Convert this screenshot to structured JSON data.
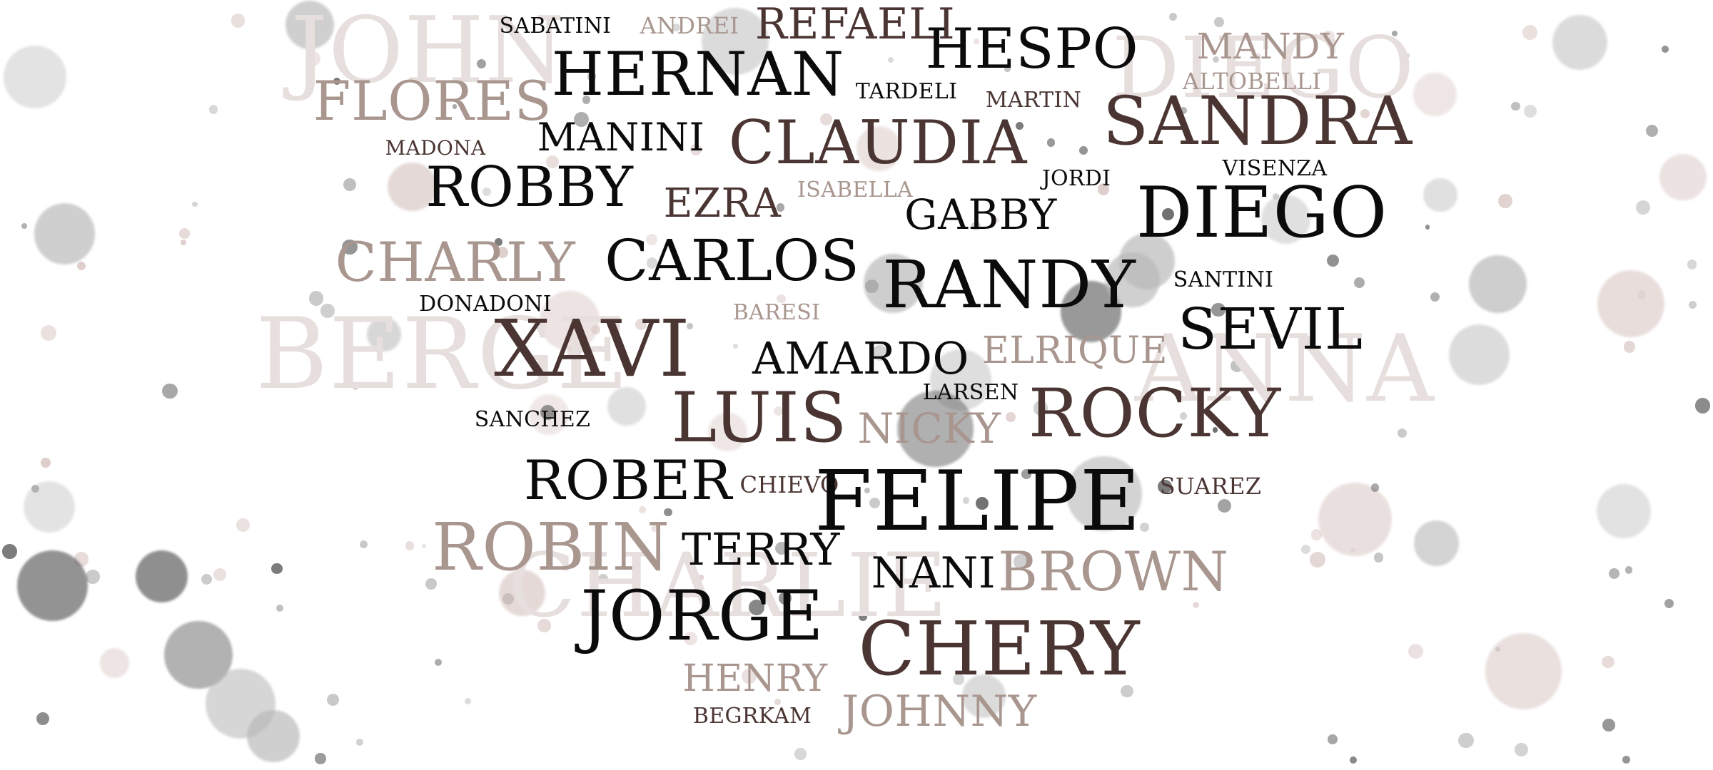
{
  "palette": {
    "black": "#0b0b0b",
    "brown": "#4a3532",
    "taupe": "#a8968f",
    "pale": "#e7dfdd",
    "dot_dark": "#5f5f5f",
    "dot_gray": "#b7b7b7",
    "dot_pink": "#dac9c6"
  },
  "words": [
    {
      "text": "JOHN",
      "tone": "pale"
    },
    {
      "text": "DIEGO",
      "tone": "pale"
    },
    {
      "text": "BERGE",
      "tone": "pale"
    },
    {
      "text": "ANNA",
      "tone": "pale"
    },
    {
      "text": "CHARLIE",
      "tone": "pale"
    },
    {
      "text": "SABATINI",
      "tone": "black"
    },
    {
      "text": "ANDREI",
      "tone": "taupe"
    },
    {
      "text": "REFAELI",
      "tone": "brown"
    },
    {
      "text": "HESPO",
      "tone": "black"
    },
    {
      "text": "MANDY",
      "tone": "taupe"
    },
    {
      "text": "HERNAN",
      "tone": "black"
    },
    {
      "text": "ALTOBELLI",
      "tone": "taupe"
    },
    {
      "text": "FLORES",
      "tone": "taupe"
    },
    {
      "text": "TARDELI",
      "tone": "black"
    },
    {
      "text": "MARTIN",
      "tone": "brown"
    },
    {
      "text": "SANDRA",
      "tone": "brown"
    },
    {
      "text": "MANINI",
      "tone": "black"
    },
    {
      "text": "CLAUDIA",
      "tone": "brown"
    },
    {
      "text": "MADONA",
      "tone": "brown"
    },
    {
      "text": "ROBBY",
      "tone": "black"
    },
    {
      "text": "JORDI",
      "tone": "black"
    },
    {
      "text": "VISENZA",
      "tone": "black"
    },
    {
      "text": "ISABELLA",
      "tone": "taupe"
    },
    {
      "text": "EZRA",
      "tone": "brown"
    },
    {
      "text": "GABBY",
      "tone": "black"
    },
    {
      "text": "DIEGO",
      "tone": "black"
    },
    {
      "text": "CHARLY",
      "tone": "taupe"
    },
    {
      "text": "CARLOS",
      "tone": "black"
    },
    {
      "text": "RANDY",
      "tone": "black"
    },
    {
      "text": "SANTINI",
      "tone": "black"
    },
    {
      "text": "DONADONI",
      "tone": "black"
    },
    {
      "text": "BARESI",
      "tone": "taupe"
    },
    {
      "text": "XAVI",
      "tone": "brown"
    },
    {
      "text": "SEVIL",
      "tone": "black"
    },
    {
      "text": "AMARDO",
      "tone": "black"
    },
    {
      "text": "ELRIQUE",
      "tone": "taupe"
    },
    {
      "text": "LARSEN",
      "tone": "black"
    },
    {
      "text": "SANCHEZ",
      "tone": "black"
    },
    {
      "text": "LUIS",
      "tone": "brown"
    },
    {
      "text": "NICKY",
      "tone": "taupe"
    },
    {
      "text": "ROCKY",
      "tone": "brown"
    },
    {
      "text": "ROBER",
      "tone": "black"
    },
    {
      "text": "CHIEVO",
      "tone": "brown"
    },
    {
      "text": "FELIPE",
      "tone": "black"
    },
    {
      "text": "SUAREZ",
      "tone": "brown"
    },
    {
      "text": "ROBIN",
      "tone": "taupe"
    },
    {
      "text": "TERRY",
      "tone": "black"
    },
    {
      "text": "NANI",
      "tone": "black"
    },
    {
      "text": "BROWN",
      "tone": "taupe"
    },
    {
      "text": "JORGE",
      "tone": "black"
    },
    {
      "text": "CHERY",
      "tone": "brown"
    },
    {
      "text": "HENRY",
      "tone": "taupe"
    },
    {
      "text": "BEGRKAM",
      "tone": "brown"
    },
    {
      "text": "JOHNNY",
      "tone": "taupe"
    }
  ]
}
